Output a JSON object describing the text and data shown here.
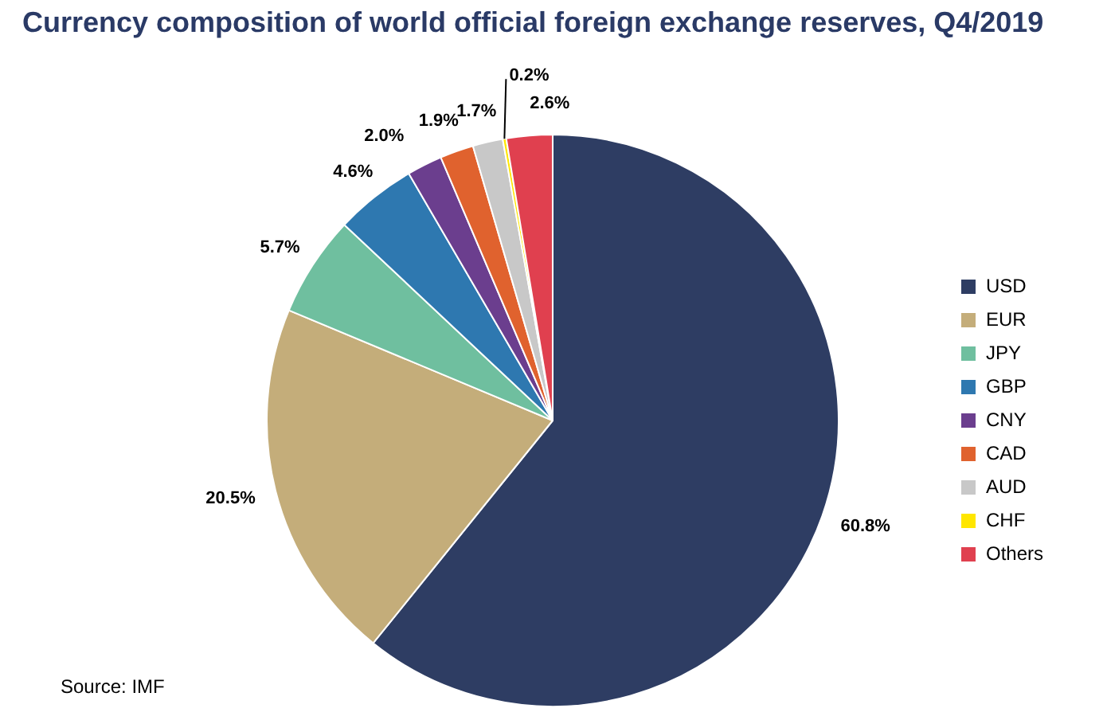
{
  "chart_data": {
    "type": "pie",
    "title": "Currency composition of world official foreign exchange reserves, Q4/2019",
    "categories": [
      "USD",
      "EUR",
      "JPY",
      "GBP",
      "CNY",
      "CAD",
      "AUD",
      "CHF",
      "Others"
    ],
    "values": [
      60.8,
      20.5,
      5.7,
      4.6,
      2.0,
      1.9,
      1.7,
      0.2,
      2.6
    ],
    "colors": [
      "#2e3d63",
      "#c4ad7a",
      "#6fbf9f",
      "#2e78b0",
      "#6b3e8e",
      "#e0622e",
      "#c8c8c8",
      "#ffe600",
      "#e0404f"
    ],
    "value_labels": [
      "60.8%",
      "20.5%",
      "5.7%",
      "4.6%",
      "2.0%",
      "1.9%",
      "1.7%",
      "0.2%",
      "2.6%"
    ],
    "legend": "right",
    "annotations": [
      "Source: IMF"
    ]
  }
}
